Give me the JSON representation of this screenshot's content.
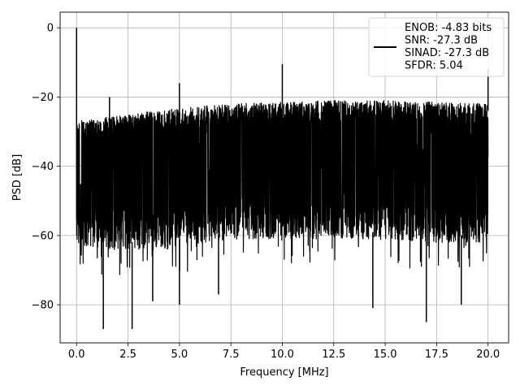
{
  "chart_data": {
    "type": "line",
    "title": "",
    "xlabel": "Frequency [MHz]",
    "ylabel": "PSD [dB]",
    "xlim": [
      -0.8,
      21.0
    ],
    "ylim": [
      -91.0,
      4.5
    ],
    "x_ticks": [
      0.0,
      2.5,
      5.0,
      7.5,
      10.0,
      12.5,
      15.0,
      17.5,
      20.0
    ],
    "x_tick_labels": [
      "0.0",
      "2.5",
      "5.0",
      "7.5",
      "10.0",
      "12.5",
      "15.0",
      "17.5",
      "20.0"
    ],
    "y_ticks": [
      0,
      -20,
      -40,
      -60,
      -80
    ],
    "y_tick_labels": [
      "0",
      "−20",
      "−40",
      "−60",
      "−80"
    ],
    "grid": true,
    "legend_position": "upper-right",
    "series": [
      {
        "name": "ENOB: -4.83 bits\nSNR: -27.3 dB\nSINAD: -27.3 dB\nSFDR: 5.04",
        "legend_lines": [
          "ENOB: -4.83 bits",
          "SNR: -27.3 dB",
          "SINAD: -27.3 dB",
          "SFDR: 5.04"
        ],
        "color": "#000000",
        "description": "dense noise floor spectrum",
        "x_range": [
          0.0,
          20.0
        ],
        "noise_floor_top": [
          {
            "x": 0.0,
            "y": -27
          },
          {
            "x": 2.5,
            "y": -25
          },
          {
            "x": 5.0,
            "y": -23
          },
          {
            "x": 7.5,
            "y": -22
          },
          {
            "x": 10.0,
            "y": -21.5
          },
          {
            "x": 12.5,
            "y": -21
          },
          {
            "x": 15.0,
            "y": -21
          },
          {
            "x": 17.5,
            "y": -21.5
          },
          {
            "x": 20.0,
            "y": -22
          }
        ],
        "noise_floor_bottom": [
          {
            "x": 0.0,
            "y": -63
          },
          {
            "x": 2.5,
            "y": -64
          },
          {
            "x": 5.0,
            "y": -63
          },
          {
            "x": 7.5,
            "y": -61
          },
          {
            "x": 10.0,
            "y": -61
          },
          {
            "x": 12.5,
            "y": -61
          },
          {
            "x": 15.0,
            "y": -61
          },
          {
            "x": 17.5,
            "y": -62
          },
          {
            "x": 20.0,
            "y": -62
          }
        ],
        "peaks": [
          {
            "x": 0.0,
            "y": 0.0
          },
          {
            "x": 1.6,
            "y": -20.0
          },
          {
            "x": 5.0,
            "y": -16.0
          },
          {
            "x": 10.0,
            "y": -10.5
          },
          {
            "x": 20.0,
            "y": -12.0
          }
        ],
        "dips": [
          {
            "x": 1.3,
            "y": -87.0
          },
          {
            "x": 2.7,
            "y": -87.0
          },
          {
            "x": 3.7,
            "y": -79.0
          },
          {
            "x": 5.0,
            "y": -80.0
          },
          {
            "x": 6.9,
            "y": -77.0
          },
          {
            "x": 14.4,
            "y": -81.0
          },
          {
            "x": 17.0,
            "y": -85.0
          },
          {
            "x": 18.7,
            "y": -80.0
          }
        ]
      }
    ]
  }
}
